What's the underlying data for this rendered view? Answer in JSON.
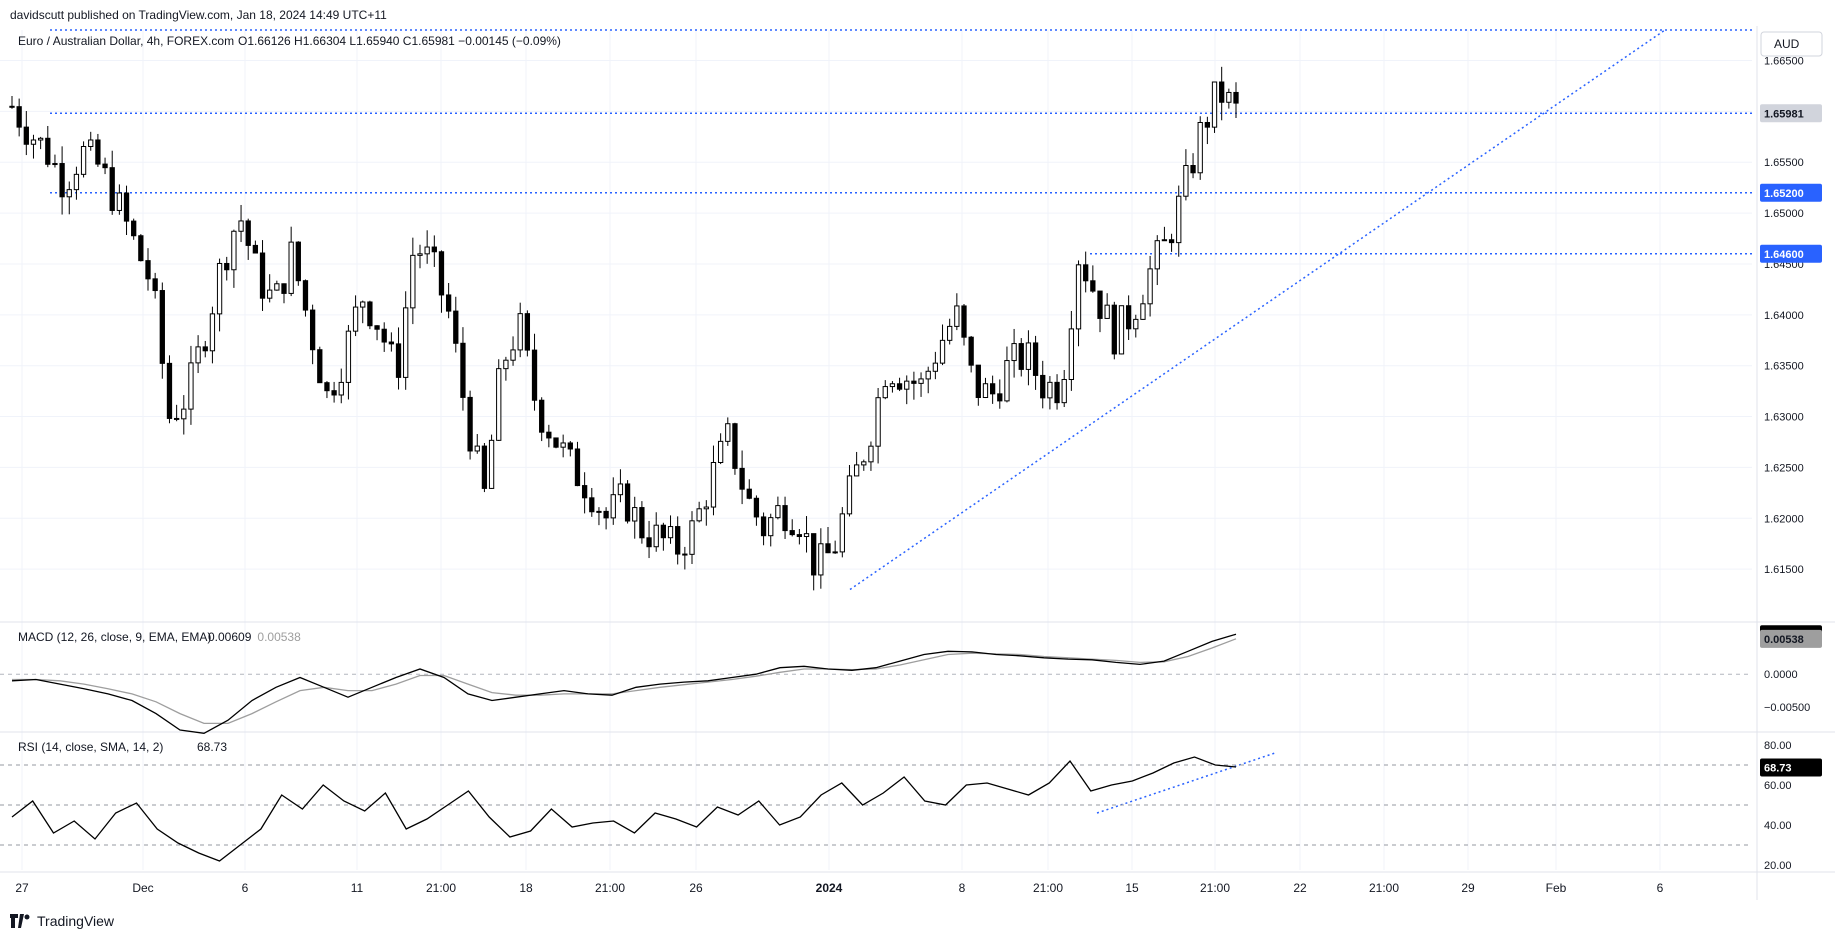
{
  "header": {
    "published": "davidscutt published on TradingView.com, Jan 18, 2024 14:49 UTC+11",
    "symbol": "Euro / Australian Dollar, 4h, FOREX.com",
    "ohlc": "O1.66126  H1.66304  L1.65940  C1.65981  −0.00145 (−0.09%)",
    "currency": "AUD"
  },
  "footer": {
    "brand": "TradingView"
  },
  "colors": {
    "candle": "#000000",
    "level_line": "#2962ff",
    "macd_line": "#000000",
    "signal_line": "#9e9e9e",
    "rsi_line": "#000000",
    "grid": "#f0f3fa"
  },
  "chart_data": [
    {
      "type": "candlestick",
      "ylim": [
        1.61,
        1.668
      ],
      "yticks": [
        "1.66500",
        "1.66000",
        "1.65500",
        "1.65000",
        "1.64500",
        "1.64000",
        "1.63500",
        "1.63000",
        "1.62500",
        "1.62000",
        "1.61500"
      ],
      "xticks": [
        "27",
        "Dec",
        "6",
        "11",
        "21:00",
        "18",
        "21:00",
        "26",
        "2024",
        "8",
        "21:00",
        "15",
        "21:00",
        "22",
        "21:00",
        "29",
        "Feb",
        "6"
      ],
      "last_price_label": "1.65981",
      "horizontal_levels": [
        {
          "value": 1.668,
          "label": ""
        },
        {
          "value": 1.65981,
          "label": ""
        },
        {
          "value": 1.652,
          "label": "1.65200"
        },
        {
          "value": 1.646,
          "label": "1.64600"
        }
      ],
      "trendline": {
        "from": {
          "x": "Jan 2",
          "y": 1.613
        },
        "to": {
          "x": "Feb 5",
          "y": 1.668
        }
      },
      "close_path": [
        1.6605,
        1.658,
        1.656,
        1.653,
        1.656,
        1.6545,
        1.651,
        1.647,
        1.643,
        1.63,
        1.632,
        1.638,
        1.645,
        1.65,
        1.644,
        1.641,
        1.646,
        1.639,
        1.632,
        1.636,
        1.642,
        1.639,
        1.634,
        1.647,
        1.645,
        1.64,
        1.63,
        1.622,
        1.635,
        1.639,
        1.631,
        1.628,
        1.625,
        1.623,
        1.62,
        1.622,
        1.619,
        1.618,
        1.617,
        1.619,
        1.624,
        1.628,
        1.622,
        1.619,
        1.621,
        1.62,
        1.615,
        1.617,
        1.623,
        1.628,
        1.635,
        1.634,
        1.633,
        1.637,
        1.64,
        1.633,
        1.632,
        1.635,
        1.636,
        1.633,
        1.633,
        1.646,
        1.642,
        1.638,
        1.64,
        1.644,
        1.647,
        1.652,
        1.658,
        1.662,
        1.66
      ]
    },
    {
      "type": "line",
      "title": "MACD (12, 26, close, 9, EMA, EMA)",
      "value_labels": [
        "0.00609",
        "0.00538"
      ],
      "yticks": [
        "0.0000",
        "−0.00500"
      ],
      "series": [
        {
          "values": [
            -0.001,
            -0.0008,
            -0.0015,
            -0.0022,
            -0.003,
            -0.004,
            -0.006,
            -0.0085,
            -0.009,
            -0.007,
            -0.004,
            -0.002,
            -0.0005,
            -0.002,
            -0.0035,
            -0.002,
            -0.0005,
            0.0008,
            -0.0005,
            -0.003,
            -0.004,
            -0.0035,
            -0.003,
            -0.0025,
            -0.003,
            -0.0032,
            -0.002,
            -0.0015,
            -0.0012,
            -0.001,
            -0.0005,
            0.0,
            0.001,
            0.0012,
            0.0008,
            0.0006,
            0.001,
            0.002,
            0.003,
            0.0035,
            0.0034,
            0.003,
            0.0028,
            0.0025,
            0.0023,
            0.0022,
            0.0018,
            0.0015,
            0.002,
            0.0035,
            0.005,
            0.0061
          ]
        },
        {
          "values": [
            -0.0008,
            -0.0008,
            -0.001,
            -0.0015,
            -0.0022,
            -0.003,
            -0.0042,
            -0.006,
            -0.0075,
            -0.0075,
            -0.006,
            -0.0042,
            -0.0025,
            -0.002,
            -0.0025,
            -0.0025,
            -0.0015,
            -0.0002,
            -0.0002,
            -0.0015,
            -0.0028,
            -0.0032,
            -0.0032,
            -0.003,
            -0.003,
            -0.003,
            -0.0025,
            -0.002,
            -0.0016,
            -0.0012,
            -0.0008,
            -0.0003,
            0.0003,
            0.0008,
            0.0008,
            0.0007,
            0.0008,
            0.0014,
            0.0022,
            0.003,
            0.0032,
            0.0031,
            0.003,
            0.0027,
            0.0025,
            0.0023,
            0.0021,
            0.0018,
            0.0019,
            0.0027,
            0.004,
            0.0054
          ]
        }
      ]
    },
    {
      "type": "line",
      "title": "RSI (14, close, SMA, 14, 2)",
      "value_label": "68.73",
      "ylim": [
        15,
        85
      ],
      "yticks": [
        "80.00",
        "60.00",
        "40.00",
        "20.00"
      ],
      "levels": [
        70,
        50,
        30
      ],
      "values": [
        44,
        52,
        36,
        42,
        33,
        46,
        51,
        38,
        31,
        26,
        22,
        30,
        38,
        55,
        48,
        60,
        52,
        47,
        56,
        38,
        43,
        50,
        57,
        44,
        34,
        37,
        48,
        39,
        41,
        42,
        36,
        46,
        43,
        39,
        49,
        45,
        52,
        40,
        44,
        55,
        61,
        50,
        56,
        64,
        52,
        50,
        60,
        61,
        58,
        55,
        61,
        72,
        57,
        60,
        62,
        66,
        71,
        74,
        70,
        69
      ]
    }
  ]
}
